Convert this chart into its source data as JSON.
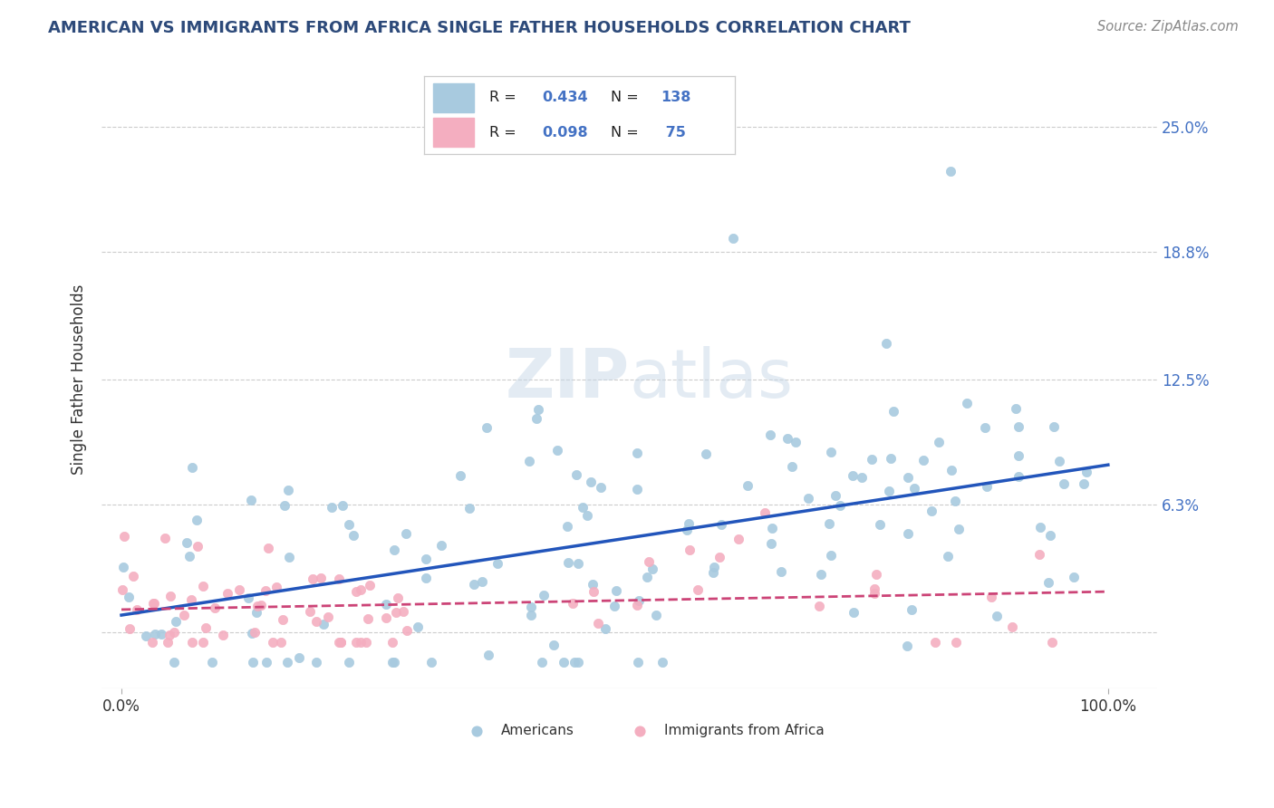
{
  "title": "AMERICAN VS IMMIGRANTS FROM AFRICA SINGLE FATHER HOUSEHOLDS CORRELATION CHART",
  "source": "Source: ZipAtlas.com",
  "ylabel": "Single Father Households",
  "americans_R": "0.434",
  "americans_N": "138",
  "immigrants_R": "0.098",
  "immigrants_N": "75",
  "watermark_zip": "ZIP",
  "watermark_atlas": "atlas",
  "blue_scatter": "#a8cadf",
  "pink_scatter": "#f4aec0",
  "blue_line": "#2255bb",
  "pink_line": "#cc4477",
  "legend_blue_fill": "#a8cadf",
  "legend_pink_fill": "#f4aec0",
  "background_color": "#ffffff",
  "grid_color": "#cccccc",
  "title_color": "#2d4a7a",
  "source_color": "#888888",
  "right_tick_color": "#4472c4",
  "ytick_vals": [
    0.0,
    0.063,
    0.125,
    0.188,
    0.25
  ],
  "ytick_labels": [
    "",
    "6.3%",
    "12.5%",
    "18.8%",
    "25.0%"
  ],
  "xlim": [
    -0.02,
    1.05
  ],
  "ylim": [
    -0.028,
    0.278
  ]
}
